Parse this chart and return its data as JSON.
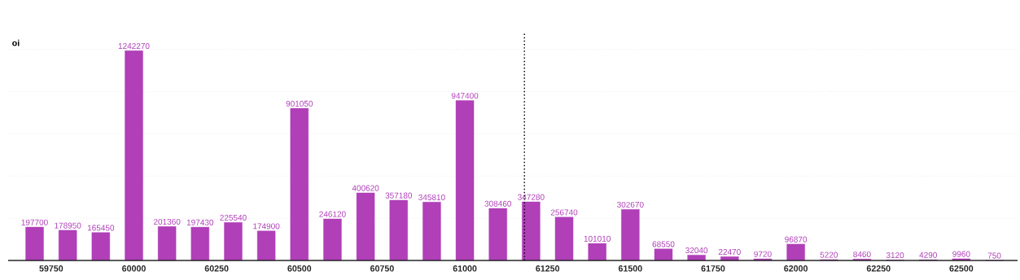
{
  "chart_data": {
    "type": "bar",
    "ylabel": "oi",
    "x": [
      59700,
      59800,
      59900,
      60000,
      60100,
      60200,
      60300,
      60400,
      60500,
      60600,
      60700,
      60800,
      60900,
      61000,
      61100,
      61200,
      61300,
      61400,
      61500,
      61600,
      61700,
      61800,
      61900,
      62000,
      62100,
      62200,
      62300,
      62400,
      62500,
      62600
    ],
    "values": [
      197700,
      178950,
      165450,
      1242270,
      201360,
      197430,
      225540,
      174900,
      901050,
      246120,
      400620,
      357180,
      345810,
      947400,
      308460,
      347280,
      256740,
      101010,
      302670,
      68550,
      32040,
      22470,
      9720,
      96870,
      5220,
      8460,
      3120,
      4290,
      9960,
      750
    ],
    "color": "#b03fb8",
    "data_labels": true,
    "xlim": [
      59620,
      62670
    ],
    "xticks": [
      59750,
      60000,
      60250,
      60500,
      60750,
      61000,
      61250,
      61500,
      61750,
      62000,
      62250,
      62500
    ],
    "ylim": [
      0,
      1350000
    ],
    "yticks": [
      {
        "value": 250000,
        "label": null
      },
      {
        "value": 500000,
        "label": null
      },
      {
        "value": 750000,
        "label": null
      },
      {
        "value": 1000000,
        "label": null
      },
      {
        "value": 1250000,
        "label": null
      }
    ],
    "grid": "y",
    "tick_labels": "x",
    "ref_lines": [
      {
        "axis": "x",
        "value": 61180,
        "line_style": "dotted",
        "color": "#000000"
      }
    ]
  }
}
